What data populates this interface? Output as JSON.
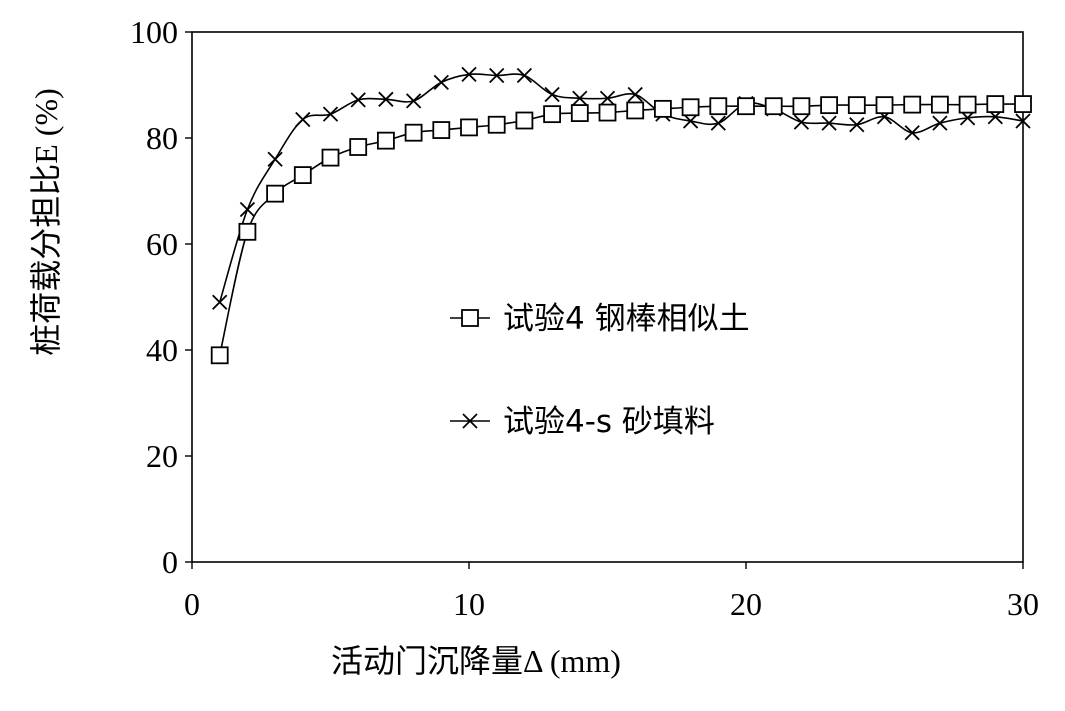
{
  "chart_data": {
    "type": "line",
    "xlabel": "活动门沉降量Δ (mm)",
    "ylabel": "桩荷载分担比E (%)",
    "xlim": [
      0,
      30
    ],
    "ylim": [
      0,
      100
    ],
    "xticks": [
      0,
      10,
      20,
      30
    ],
    "yticks": [
      0,
      20,
      40,
      60,
      80,
      100
    ],
    "grid": false,
    "legend_position": "center",
    "series": [
      {
        "name": "试验4 钢棒相似土",
        "marker": "square",
        "x": [
          1,
          2,
          3,
          4,
          5,
          6,
          7,
          8,
          9,
          10,
          11,
          12,
          13,
          14,
          15,
          16,
          17,
          18,
          19,
          20,
          21,
          22,
          23,
          24,
          25,
          26,
          27,
          28,
          29,
          30
        ],
        "values": [
          39,
          62.3,
          69.5,
          73,
          76.3,
          78.3,
          79.5,
          81,
          81.5,
          82,
          82.5,
          83.3,
          84.5,
          84.7,
          84.8,
          85.2,
          85.5,
          85.8,
          86,
          86,
          86,
          86,
          86.2,
          86.2,
          86.2,
          86.3,
          86.3,
          86.3,
          86.4,
          86.4
        ]
      },
      {
        "name": "试验4-s 砂填料",
        "marker": "x",
        "x": [
          1,
          2,
          3,
          4,
          5,
          6,
          7,
          8,
          9,
          10,
          11,
          12,
          13,
          14,
          15,
          16,
          17,
          18,
          19,
          20,
          21,
          22,
          23,
          24,
          25,
          26,
          27,
          28,
          29,
          30
        ],
        "values": [
          49,
          66.5,
          76,
          83.5,
          84.5,
          87.2,
          87.3,
          87,
          90.5,
          92,
          91.8,
          91.8,
          88.2,
          87.5,
          87.5,
          88.2,
          84.5,
          83.2,
          82.8,
          86.5,
          85.5,
          83,
          82.8,
          82.5,
          84,
          81,
          82.8,
          83.8,
          84,
          83.2
        ]
      }
    ]
  }
}
